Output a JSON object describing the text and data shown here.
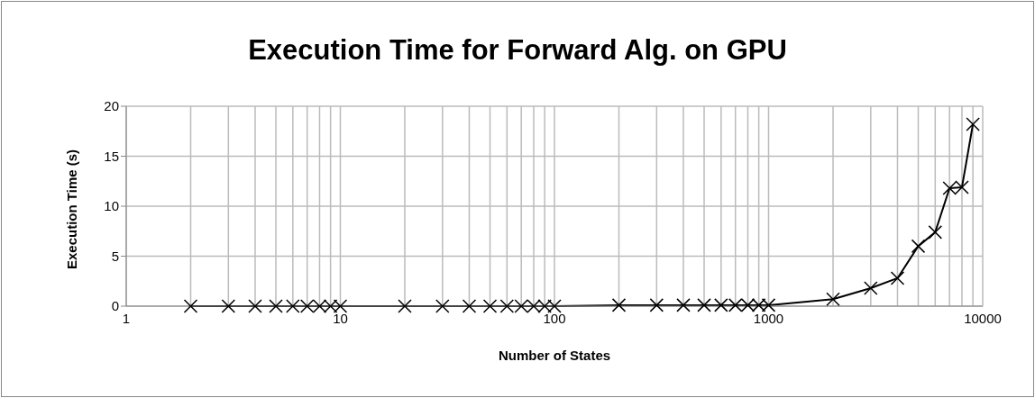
{
  "chart_data": {
    "type": "line",
    "title": "Execution Time for Forward Alg. on GPU",
    "xlabel": "Number of States",
    "ylabel": "Execution Time (s)",
    "x": [
      2,
      3,
      4,
      5,
      6,
      7,
      8,
      9,
      10,
      20,
      30,
      40,
      50,
      60,
      70,
      80,
      90,
      100,
      200,
      300,
      400,
      500,
      600,
      700,
      800,
      900,
      1000,
      2000,
      3000,
      4000,
      5000,
      6000,
      7000,
      8000,
      9000
    ],
    "series": [
      {
        "color": "#000000",
        "values": [
          0,
          0,
          0,
          0,
          0,
          0,
          0,
          0,
          0,
          0,
          0,
          0,
          0,
          0,
          0,
          0,
          0,
          0,
          0.1,
          0.1,
          0.1,
          0.1,
          0.1,
          0.1,
          0.1,
          0.1,
          0.1,
          0.7,
          1.8,
          2.8,
          6.0,
          7.4,
          11.8,
          11.9,
          18.2
        ]
      }
    ],
    "log": "x",
    "xlim": [
      1,
      10000
    ],
    "xticks": [
      1,
      {
        "value": 2,
        "label": null
      },
      {
        "value": 3,
        "label": null
      },
      {
        "value": 4,
        "label": null
      },
      {
        "value": 5,
        "label": null
      },
      {
        "value": 6,
        "label": null
      },
      {
        "value": 7,
        "label": null
      },
      {
        "value": 8,
        "label": null
      },
      {
        "value": 9,
        "label": null
      },
      10,
      {
        "value": 20,
        "label": null
      },
      {
        "value": 30,
        "label": null
      },
      {
        "value": 40,
        "label": null
      },
      {
        "value": 50,
        "label": null
      },
      {
        "value": 60,
        "label": null
      },
      {
        "value": 70,
        "label": null
      },
      {
        "value": 80,
        "label": null
      },
      {
        "value": 90,
        "label": null
      },
      100,
      {
        "value": 200,
        "label": null
      },
      {
        "value": 300,
        "label": null
      },
      {
        "value": 400,
        "label": null
      },
      {
        "value": 500,
        "label": null
      },
      {
        "value": 600,
        "label": null
      },
      {
        "value": 700,
        "label": null
      },
      {
        "value": 800,
        "label": null
      },
      {
        "value": 900,
        "label": null
      },
      1000,
      {
        "value": 2000,
        "label": null
      },
      {
        "value": 3000,
        "label": null
      },
      {
        "value": 4000,
        "label": null
      },
      {
        "value": 5000,
        "label": null
      },
      {
        "value": 6000,
        "label": null
      },
      {
        "value": 7000,
        "label": null
      },
      {
        "value": 8000,
        "label": null
      },
      {
        "value": 9000,
        "label": null
      },
      10000
    ],
    "ylim": [
      0,
      20
    ],
    "yticks": [
      0,
      5,
      10,
      15,
      20
    ],
    "grid": true,
    "marker": "cross",
    "line_style": "solid",
    "legend": false
  }
}
